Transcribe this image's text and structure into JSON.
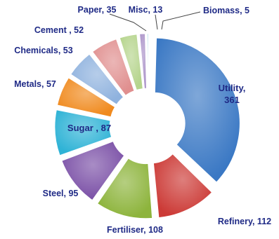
{
  "chart_data": {
    "type": "pie",
    "title": "",
    "slices": [
      {
        "label": "Utility",
        "value": 361,
        "color": "#3a78c4",
        "text_lines": [
          "Utility,",
          "361"
        ]
      },
      {
        "label": "Refinery",
        "value": 112,
        "color": "#cc3a36",
        "text_lines": [
          "Refinery, 112"
        ]
      },
      {
        "label": "Fertiliser",
        "value": 108,
        "color": "#8db43c",
        "text_lines": [
          "Fertiliser, 108"
        ]
      },
      {
        "label": "Steel",
        "value": 95,
        "color": "#7a4fa6",
        "text_lines": [
          "Steel, 95"
        ]
      },
      {
        "label": "Sugar",
        "value": 87,
        "color": "#2fb3d6",
        "text_lines": [
          "Sugar , 87"
        ]
      },
      {
        "label": "Metals",
        "value": 57,
        "color": "#f08a1e",
        "text_lines": [
          "Metals, 57"
        ]
      },
      {
        "label": "Chemicals",
        "value": 53,
        "color": "#8fb2de",
        "text_lines": [
          "Chemicals, 53"
        ]
      },
      {
        "label": "Cement",
        "value": 52,
        "color": "#e08f8f",
        "text_lines": [
          "Cement , 52"
        ]
      },
      {
        "label": "Paper",
        "value": 35,
        "color": "#b5d48c",
        "text_lines": [
          "Paper, 35"
        ]
      },
      {
        "label": "Misc",
        "value": 13,
        "color": "#ab93c9",
        "text_lines": [
          "Misc, 13"
        ]
      },
      {
        "label": "Biomass",
        "value": 5,
        "color": "#7cc6de",
        "text_lines": [
          "Biomass, 5"
        ]
      }
    ],
    "legend": "none"
  }
}
